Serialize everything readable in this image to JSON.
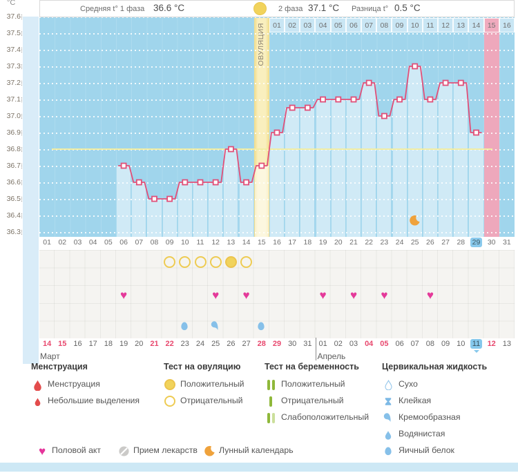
{
  "header": {
    "avg_phase1_label": "Средняя t° 1 фаза",
    "avg_phase1_value": "36.6 °C",
    "phase2_label": "2 фаза",
    "phase2_value": "37.1 °C",
    "diff_label": "Разница t°",
    "diff_value": "0.5 °C"
  },
  "chart_data": {
    "type": "line",
    "unit": "°C",
    "ylim": [
      36.3,
      37.6
    ],
    "ytick_labels": [
      "37.6",
      "37.5",
      "37.4",
      "37.3",
      "37.2",
      "37.1",
      "37.0",
      "36.9",
      "36.8",
      "36.7",
      "36.6",
      "36.5",
      "36.4",
      "36.3"
    ],
    "x_labels": [
      "01",
      "02",
      "03",
      "04",
      "05",
      "06",
      "07",
      "08",
      "09",
      "10",
      "11",
      "12",
      "13",
      "14",
      "15",
      "16",
      "17",
      "18",
      "19",
      "20",
      "21",
      "22",
      "23",
      "24",
      "25",
      "26",
      "27",
      "28",
      "29",
      "30",
      "31"
    ],
    "series": [
      {
        "name": "t°",
        "values": [
          null,
          null,
          null,
          null,
          null,
          36.7,
          36.6,
          36.5,
          36.5,
          36.6,
          36.6,
          36.6,
          36.8,
          36.6,
          36.7,
          36.9,
          37.05,
          37.05,
          37.1,
          37.1,
          37.1,
          37.2,
          37.0,
          37.1,
          37.3,
          37.1,
          37.2,
          37.2,
          36.9,
          null,
          null
        ]
      }
    ],
    "coverline": 36.8,
    "grid": "dotted-white",
    "ovulation": {
      "day": 15,
      "label": "ОВУЛЯЦИЯ"
    },
    "expected_period_day": 30,
    "today_cycle_day": "29",
    "dpo_row": {
      "labels": [
        "01",
        "02",
        "03",
        "04",
        "05",
        "06",
        "07",
        "08",
        "09",
        "10",
        "11",
        "12",
        "13",
        "14",
        "15",
        "16"
      ],
      "highlighted": "15"
    },
    "moon_day": 25
  },
  "events": {
    "ovulation_tests": {
      "negative_days": [
        9,
        10,
        11,
        12,
        14
      ],
      "positive_days": [
        13
      ]
    },
    "intercourse_days": [
      6,
      12,
      14,
      19,
      21,
      23,
      26
    ],
    "cervical_fluid": [
      {
        "day": 10,
        "type": "fluid_eggwhite"
      },
      {
        "day": 12,
        "type": "fluid_creamy"
      },
      {
        "day": 15,
        "type": "fluid_eggwhite"
      }
    ],
    "lunar_calendar_days": [
      25
    ]
  },
  "calendar": {
    "months": [
      {
        "name": "Март",
        "dates": [
          "14",
          "15",
          "16",
          "17",
          "18",
          "19",
          "20",
          "21",
          "22",
          "23",
          "24",
          "25",
          "26",
          "27",
          "28",
          "29",
          "30",
          "31"
        ],
        "red_dates": [
          "14",
          "15",
          "21",
          "22",
          "28",
          "29"
        ]
      },
      {
        "name": "Апрель",
        "dates": [
          "01",
          "02",
          "03",
          "04",
          "05",
          "06",
          "07",
          "08",
          "09",
          "10",
          "11",
          "12",
          "13"
        ],
        "red_dates": [
          "04",
          "05",
          "12"
        ],
        "today": "11"
      }
    ]
  },
  "legend": {
    "groups": [
      {
        "title": "Менструация",
        "items": [
          {
            "icon": "drop",
            "label": "Менструация"
          },
          {
            "icon": "drop_small",
            "label": "Небольшие выделения"
          }
        ]
      },
      {
        "title": "Тест на овуляцию",
        "items": [
          {
            "icon": "circle_filled",
            "label": "Положительный"
          },
          {
            "icon": "circle_outline",
            "label": "Отрицательный"
          }
        ]
      },
      {
        "title": "Тест на беременность",
        "items": [
          {
            "icon": "bars_positive",
            "label": "Положительный"
          },
          {
            "icon": "bars_negative",
            "label": "Отрицательный"
          },
          {
            "icon": "bars_weak",
            "label": "Слабоположительный"
          }
        ]
      },
      {
        "title": "Цервикальная жидкость",
        "items": [
          {
            "icon": "fluid_dry",
            "label": "Сухо"
          },
          {
            "icon": "fluid_sticky",
            "label": "Клейкая"
          },
          {
            "icon": "fluid_creamy",
            "label": "Кремообразная"
          },
          {
            "icon": "fluid_watery",
            "label": "Водянистая"
          },
          {
            "icon": "fluid_eggwhite",
            "label": "Яичный белок"
          }
        ]
      }
    ],
    "extra_items": [
      {
        "icon": "heart",
        "label": "Половой акт"
      },
      {
        "icon": "pills",
        "label": "Прием лекарств"
      },
      {
        "icon": "moon",
        "label": "Лунный календарь"
      }
    ]
  },
  "colors": {
    "chart_bg": "#a0d5ec",
    "bar_fill": "#cfeaf8",
    "line": "#e14f78",
    "coverline": "#f2eda2",
    "ovulation_column": "#f6e9a8",
    "period_column": "#eea8bc",
    "today_highlight": "#85c8ec",
    "heart": "#e43a9a",
    "weekend_date": "#e8486e",
    "ovulation_test": "#f1d35c",
    "pregnancy_test": "#8fb83a",
    "cervical_fluid": "#86c0e9",
    "menstruation": "#e34c4c",
    "moon": "#efa23c",
    "footer_bar": "#cde8f5"
  }
}
